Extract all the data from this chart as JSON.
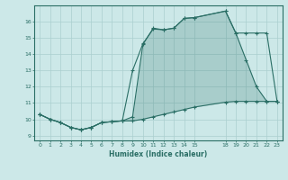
{
  "xlabel": "Humidex (Indice chaleur)",
  "bg_color": "#cce8e8",
  "line_color": "#2a6e65",
  "grid_color": "#aacfcf",
  "xlim": [
    -0.5,
    23.5
  ],
  "ylim": [
    8.7,
    17.0
  ],
  "xticks": [
    0,
    1,
    2,
    3,
    4,
    5,
    6,
    7,
    8,
    9,
    10,
    11,
    12,
    13,
    14,
    15,
    18,
    19,
    20,
    21,
    22,
    23
  ],
  "yticks": [
    9,
    10,
    11,
    12,
    13,
    14,
    15,
    16
  ],
  "line1_x": [
    0,
    1,
    2,
    3,
    4,
    5,
    6,
    7,
    8,
    9,
    10,
    11,
    12,
    13,
    14,
    15,
    18,
    19,
    20,
    21,
    22,
    23
  ],
  "line1_y": [
    10.3,
    10.0,
    9.8,
    9.5,
    9.35,
    9.5,
    9.8,
    9.85,
    9.9,
    10.15,
    14.6,
    15.6,
    15.5,
    15.6,
    16.2,
    16.25,
    16.65,
    15.3,
    13.65,
    12.0,
    11.1,
    11.1
  ],
  "line2_x": [
    0,
    1,
    2,
    3,
    4,
    5,
    6,
    7,
    8,
    9,
    10,
    11,
    12,
    13,
    14,
    15,
    18,
    19,
    20,
    21,
    22,
    23
  ],
  "line2_y": [
    10.3,
    10.0,
    9.8,
    9.5,
    9.35,
    9.5,
    9.8,
    9.85,
    9.9,
    13.0,
    14.65,
    15.55,
    15.5,
    15.6,
    16.2,
    16.25,
    16.65,
    15.3,
    15.3,
    15.3,
    15.3,
    11.1
  ],
  "line3_x": [
    0,
    1,
    2,
    3,
    4,
    5,
    6,
    7,
    8,
    9,
    10,
    11,
    12,
    13,
    14,
    15,
    18,
    19,
    20,
    21,
    22,
    23
  ],
  "line3_y": [
    10.3,
    10.0,
    9.8,
    9.5,
    9.35,
    9.5,
    9.8,
    9.85,
    9.9,
    9.9,
    10.0,
    10.15,
    10.3,
    10.45,
    10.6,
    10.75,
    11.05,
    11.1,
    11.1,
    11.1,
    11.1,
    11.1
  ]
}
